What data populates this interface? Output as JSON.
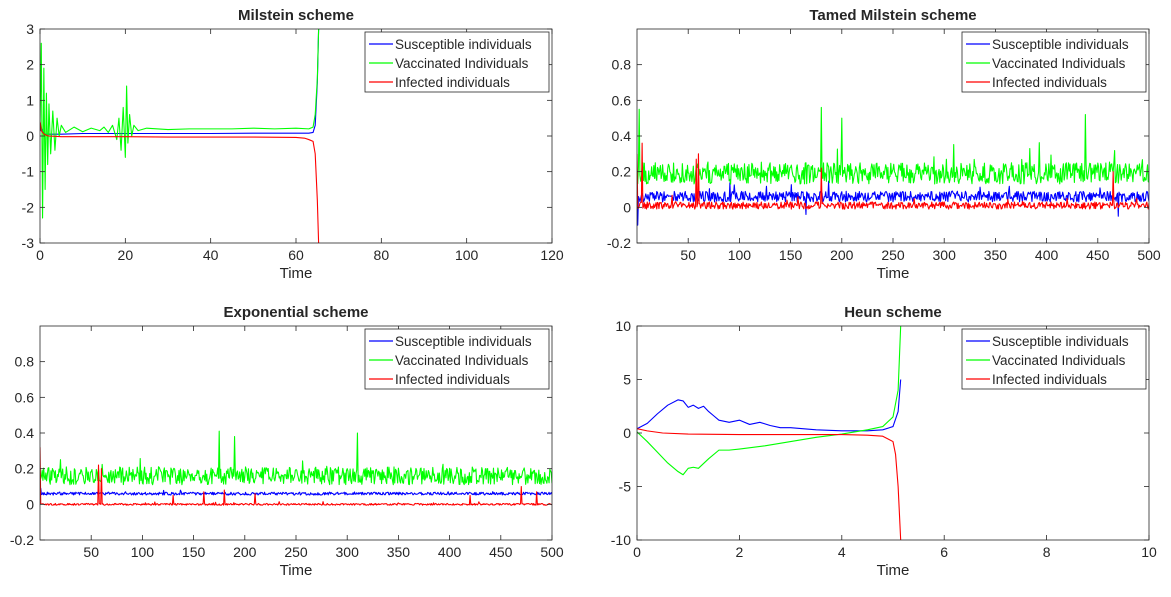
{
  "chart_data": [
    {
      "type": "line",
      "title": "Milstein scheme",
      "xlabel": "Time",
      "ylabel": "",
      "xlim": [
        0,
        120
      ],
      "ylim": [
        -3,
        3
      ],
      "xticks": [
        0,
        20,
        40,
        60,
        80,
        100,
        120
      ],
      "yticks": [
        -3,
        -2,
        -1,
        0,
        1,
        2,
        3
      ],
      "legend_position": "top-right",
      "grid": false,
      "series": [
        {
          "name": "Susceptible individuals",
          "color": "#0000ff",
          "x": [
            0,
            0.2,
            0.5,
            1,
            2,
            3,
            5,
            10,
            20,
            30,
            40,
            50,
            60,
            63,
            64,
            64.5,
            65,
            65.3
          ],
          "y": [
            0.3,
            0.15,
            0.2,
            0.05,
            0.05,
            0.05,
            0.05,
            0.07,
            0.07,
            0.07,
            0.07,
            0.08,
            0.08,
            0.08,
            0.1,
            0.3,
            1.5,
            3
          ]
        },
        {
          "name": "Vaccinated Individuals",
          "color": "#00ff00",
          "x": [
            0,
            0.3,
            0.6,
            0.9,
            1.2,
            1.5,
            1.8,
            2.1,
            2.5,
            3,
            3.5,
            4,
            4.5,
            5,
            6,
            8,
            10,
            12,
            14,
            15,
            16,
            17,
            18,
            18.5,
            19,
            19.5,
            20,
            20.3,
            20.6,
            21,
            21.5,
            22,
            23,
            25,
            30,
            35,
            40,
            45,
            50,
            55,
            60,
            63,
            64,
            64.5,
            65,
            65.3
          ],
          "y": [
            0.3,
            2.6,
            -2.3,
            1.9,
            -1.5,
            1.2,
            -0.8,
            0.9,
            -0.5,
            0.7,
            -0.4,
            0.5,
            0.0,
            0.3,
            0.1,
            0.25,
            0.12,
            0.22,
            0.15,
            0.25,
            0.1,
            0.3,
            -0.1,
            0.5,
            -0.4,
            0.8,
            -0.6,
            1.4,
            -0.2,
            0.6,
            0.0,
            0.3,
            0.15,
            0.22,
            0.18,
            0.2,
            0.2,
            0.2,
            0.22,
            0.2,
            0.22,
            0.2,
            0.25,
            0.6,
            1.6,
            3
          ]
        },
        {
          "name": "Infected individuals",
          "color": "#ff0000",
          "x": [
            0,
            0.1,
            0.3,
            0.6,
            1,
            1.5,
            2,
            5,
            10,
            20,
            30,
            40,
            50,
            60,
            62,
            63,
            64,
            64.5,
            65,
            65.3
          ],
          "y": [
            0.4,
            0.35,
            0.15,
            0.1,
            0.05,
            0.02,
            0.0,
            -0.02,
            -0.02,
            -0.02,
            -0.03,
            -0.03,
            -0.03,
            -0.04,
            -0.06,
            -0.1,
            -0.15,
            -0.5,
            -1.8,
            -3
          ]
        }
      ]
    },
    {
      "type": "line",
      "title": "Tamed Milstein scheme",
      "xlabel": "Time",
      "ylabel": "",
      "xlim": [
        0,
        500
      ],
      "ylim": [
        -0.2,
        1
      ],
      "xticks": [
        50,
        100,
        150,
        200,
        250,
        300,
        350,
        400,
        450,
        500
      ],
      "yticks": [
        -0.2,
        0,
        0.2,
        0.4,
        0.6,
        0.8
      ],
      "legend_position": "top-right",
      "grid": false,
      "series": [
        {
          "name": "Susceptible individuals",
          "color": "#0000ff",
          "x_range": [
            0,
            500
          ],
          "mean": 0.06,
          "fluctuation": 0.03,
          "spikes": [
            [
              1,
              -0.1
            ],
            [
              165,
              -0.04
            ],
            [
              470,
              -0.05
            ]
          ]
        },
        {
          "name": "Vaccinated Individuals",
          "color": "#00ff00",
          "x_range": [
            0,
            500
          ],
          "mean": 0.19,
          "fluctuation": 0.06,
          "spikes": [
            [
              2,
              0.55
            ],
            [
              180,
              0.56
            ],
            [
              200,
              0.5
            ],
            [
              438,
              0.52
            ]
          ]
        },
        {
          "name": "Infected individuals",
          "color": "#ff0000",
          "x_range": [
            0,
            500
          ],
          "mean": 0.01,
          "fluctuation": 0.02,
          "spikes": [
            [
              0,
              0.3
            ],
            [
              5,
              0.36
            ],
            [
              58,
              0.27
            ],
            [
              60,
              0.3
            ],
            [
              180,
              0.22
            ],
            [
              465,
              0.2
            ]
          ]
        }
      ]
    },
    {
      "type": "line",
      "title": "Exponential scheme",
      "xlabel": "Time",
      "ylabel": "",
      "xlim": [
        0,
        500
      ],
      "ylim": [
        -0.2,
        1
      ],
      "xticks": [
        50,
        100,
        150,
        200,
        250,
        300,
        350,
        400,
        450,
        500
      ],
      "yticks": [
        -0.2,
        0,
        0.2,
        0.4,
        0.6,
        0.8
      ],
      "legend_position": "top-right",
      "grid": false,
      "series": [
        {
          "name": "Susceptible individuals",
          "color": "#0000ff",
          "x_range": [
            0,
            500
          ],
          "mean": 0.06,
          "fluctuation": 0.008,
          "spikes": [
            [
              1,
              0.09
            ]
          ]
        },
        {
          "name": "Vaccinated Individuals",
          "color": "#00ff00",
          "x_range": [
            0,
            500
          ],
          "mean": 0.16,
          "fluctuation": 0.05,
          "spikes": [
            [
              175,
              0.41
            ],
            [
              190,
              0.38
            ],
            [
              310,
              0.4
            ]
          ]
        },
        {
          "name": "Infected individuals",
          "color": "#ff0000",
          "x_range": [
            0,
            500
          ],
          "mean": 0.0,
          "fluctuation": 0.005,
          "spikes": [
            [
              0,
              0.32
            ],
            [
              57,
              0.22
            ],
            [
              60,
              0.2
            ],
            [
              130,
              0.05
            ],
            [
              160,
              0.07
            ],
            [
              180,
              0.08
            ],
            [
              210,
              0.06
            ],
            [
              420,
              0.05
            ],
            [
              470,
              0.1
            ],
            [
              485,
              0.07
            ]
          ]
        }
      ]
    },
    {
      "type": "line",
      "title": "Heun scheme",
      "xlabel": "Time",
      "ylabel": "",
      "xlim": [
        0,
        10
      ],
      "ylim": [
        -10,
        10
      ],
      "xticks": [
        0,
        2,
        4,
        6,
        8,
        10
      ],
      "yticks": [
        -10,
        -5,
        0,
        5,
        10
      ],
      "legend_position": "top-right",
      "grid": false,
      "series": [
        {
          "name": "Susceptible individuals",
          "color": "#0000ff",
          "x": [
            0,
            0.2,
            0.4,
            0.6,
            0.8,
            0.9,
            1.0,
            1.1,
            1.2,
            1.3,
            1.4,
            1.5,
            1.6,
            1.8,
            2.0,
            2.2,
            2.4,
            2.6,
            2.8,
            3.0,
            3.5,
            4.0,
            4.5,
            4.8,
            5.0,
            5.1,
            5.15
          ],
          "y": [
            0.4,
            0.9,
            1.8,
            2.6,
            3.1,
            3.0,
            2.4,
            2.6,
            2.3,
            2.5,
            2.0,
            1.6,
            1.2,
            1.0,
            1.2,
            0.8,
            1.0,
            0.7,
            0.5,
            0.5,
            0.3,
            0.2,
            0.2,
            0.3,
            0.6,
            2.0,
            5.0
          ]
        },
        {
          "name": "Vaccinated Individuals",
          "color": "#00ff00",
          "x": [
            0,
            0.2,
            0.4,
            0.6,
            0.8,
            0.9,
            1.0,
            1.1,
            1.2,
            1.4,
            1.6,
            1.8,
            2.0,
            2.5,
            3.0,
            3.5,
            4.0,
            4.5,
            4.8,
            5.0,
            5.1,
            5.15
          ],
          "y": [
            0.1,
            -0.8,
            -1.8,
            -2.8,
            -3.6,
            -3.9,
            -3.3,
            -3.2,
            -3.3,
            -2.4,
            -1.6,
            -1.6,
            -1.5,
            -1.2,
            -0.8,
            -0.4,
            -0.1,
            0.3,
            0.6,
            1.5,
            4.0,
            10
          ]
        },
        {
          "name": "Infected individuals",
          "color": "#ff0000",
          "x": [
            0,
            0.2,
            0.5,
            1.0,
            2.0,
            3.0,
            4.0,
            4.5,
            4.8,
            5.0,
            5.05,
            5.1,
            5.15
          ],
          "y": [
            0.4,
            0.2,
            0.0,
            -0.1,
            -0.15,
            -0.15,
            -0.15,
            -0.2,
            -0.3,
            -0.8,
            -2.0,
            -5.0,
            -10
          ]
        }
      ]
    }
  ]
}
